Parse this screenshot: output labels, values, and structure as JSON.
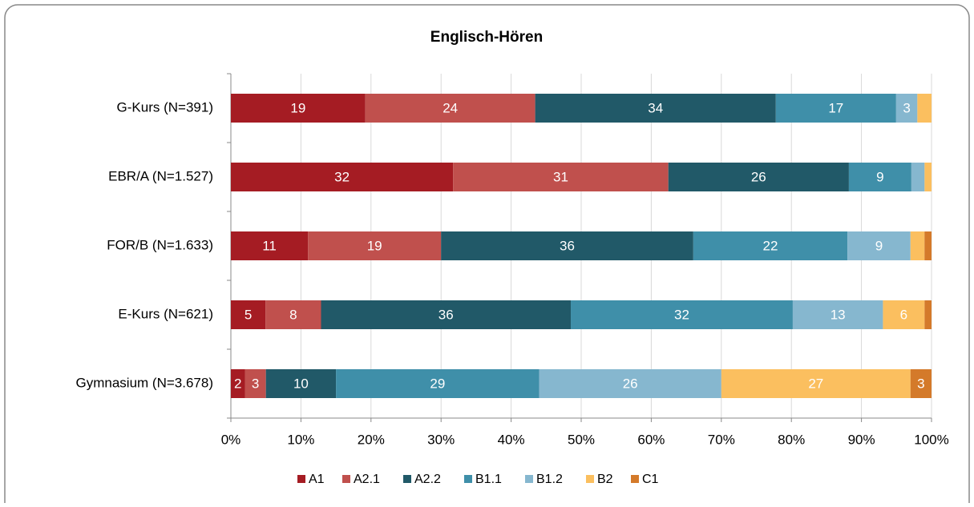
{
  "chart_data": {
    "type": "stacked_bar_100",
    "title": "Englisch-Hören",
    "categories": [
      "G-Kurs (N=391)",
      "EBR/A (N=1.527)",
      "FOR/B (N=1.633)",
      "E-Kurs (N=621)",
      "Gymnasium (N=3.678)"
    ],
    "series": [
      {
        "name": "A1",
        "color": "#a51c23",
        "values": [
          19,
          32,
          11,
          5,
          2
        ],
        "value_labels": [
          "19",
          "32",
          "11",
          "5",
          "2"
        ]
      },
      {
        "name": "A2.1",
        "color": "#c0504d",
        "values": [
          24,
          31,
          19,
          8,
          3
        ],
        "value_labels": [
          "24",
          "31",
          "19",
          "8",
          "3"
        ]
      },
      {
        "name": "A2.2",
        "color": "#215968",
        "values": [
          34,
          26,
          36,
          36,
          10
        ],
        "value_labels": [
          "34",
          "26",
          "36",
          "36",
          "10"
        ]
      },
      {
        "name": "B1.1",
        "color": "#3f8fa9",
        "values": [
          17,
          9,
          22,
          32,
          29
        ],
        "value_labels": [
          "17",
          "9",
          "22",
          "32",
          "29"
        ]
      },
      {
        "name": "B1.2",
        "color": "#86b7cf",
        "values": [
          3,
          1.9,
          9,
          13,
          26
        ],
        "value_labels": [
          "3",
          null,
          "9",
          "13",
          "26"
        ]
      },
      {
        "name": "B2",
        "color": "#fbbf5f",
        "values": [
          2,
          1,
          2,
          6,
          27
        ],
        "value_labels": [
          null,
          null,
          null,
          "6",
          "27"
        ]
      },
      {
        "name": "C1",
        "color": "#d47a2a",
        "values": [
          0,
          0,
          1,
          1,
          3
        ],
        "value_labels": [
          null,
          null,
          null,
          null,
          "3"
        ]
      }
    ],
    "xlim": [
      0,
      100
    ],
    "xticks": [
      {
        "value": 0,
        "label": "0%"
      },
      {
        "value": 10,
        "label": "10%"
      },
      {
        "value": 20,
        "label": "20%"
      },
      {
        "value": 30,
        "label": "30%"
      },
      {
        "value": 40,
        "label": "40%"
      },
      {
        "value": 50,
        "label": "50%"
      },
      {
        "value": 60,
        "label": "60%"
      },
      {
        "value": 70,
        "label": "70%"
      },
      {
        "value": 80,
        "label": "80%"
      },
      {
        "value": 90,
        "label": "90%"
      },
      {
        "value": 100,
        "label": "100%"
      }
    ],
    "grid": true,
    "legend": "bottom"
  }
}
